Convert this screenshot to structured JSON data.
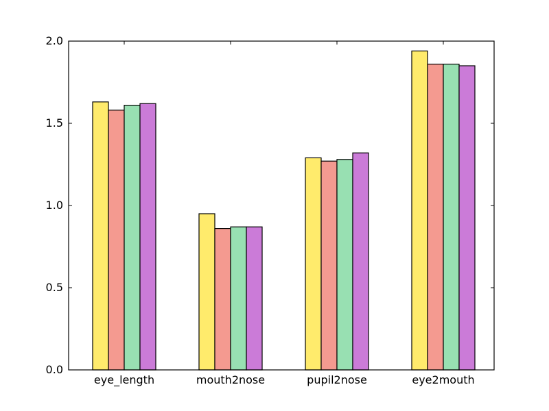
{
  "chart_data": {
    "type": "bar",
    "categories": [
      "eye_length",
      "mouth2nose",
      "pupil2nose",
      "eye2mouth"
    ],
    "series": [
      {
        "color": "#ffeb6c",
        "values": [
          1.63,
          0.95,
          1.29,
          1.94
        ]
      },
      {
        "color": "#f49a90",
        "values": [
          1.58,
          0.86,
          1.27,
          1.86
        ]
      },
      {
        "color": "#98e0b2",
        "values": [
          1.61,
          0.87,
          1.28,
          1.86
        ]
      },
      {
        "color": "#cb7bd8",
        "values": [
          1.62,
          0.87,
          1.32,
          1.85
        ]
      }
    ],
    "ylim": [
      0.0,
      2.0
    ],
    "yticks": [
      0.0,
      0.5,
      1.0,
      1.5,
      2.0
    ],
    "ytick_labels": [
      "0.0",
      "0.5",
      "1.0",
      "1.5",
      "2.0"
    ],
    "grid": false,
    "title": "",
    "xlabel": "",
    "ylabel": ""
  }
}
